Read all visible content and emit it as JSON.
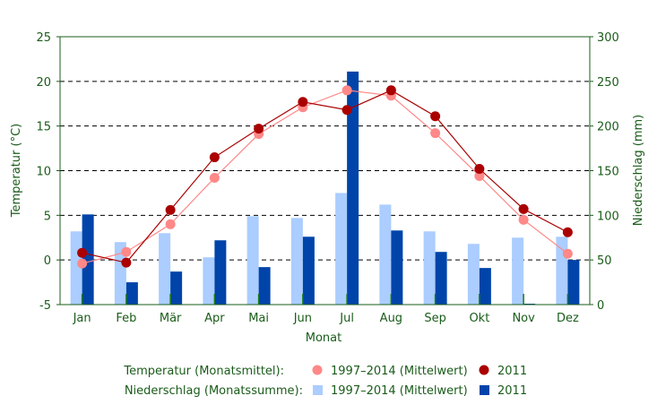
{
  "chart_data": {
    "type": "bar",
    "xlabel": "Monat",
    "ylabel_left": "Temperatur (°C)",
    "ylabel_right": "Niederschlag (mm)",
    "categories": [
      "Jan",
      "Feb",
      "Mär",
      "Apr",
      "Mai",
      "Jun",
      "Jul",
      "Aug",
      "Sep",
      "Okt",
      "Nov",
      "Dez"
    ],
    "ylim_left": [
      -5,
      25
    ],
    "yticks_left": [
      "-5",
      "0",
      "5",
      "10",
      "15",
      "20",
      "25"
    ],
    "ylim_right": [
      0,
      300
    ],
    "yticks_right": [
      "0",
      "50",
      "100",
      "150",
      "200",
      "250",
      "300"
    ],
    "grid": "horizontal dashed",
    "series": [
      {
        "name": "1997–2014 (Mittelwert)",
        "group": "Niederschlag",
        "kind": "bar",
        "axis": "right",
        "color": "#abcdff",
        "values": [
          82,
          70,
          80,
          53,
          99,
          97,
          125,
          112,
          82,
          68,
          75,
          76
        ]
      },
      {
        "name": "2011",
        "group": "Niederschlag",
        "kind": "bar",
        "axis": "right",
        "color": "#0044aa",
        "values": [
          101,
          25,
          37,
          72,
          42,
          76,
          261,
          83,
          59,
          41,
          1,
          50
        ]
      },
      {
        "name": "1997–2014 (Mittelwert)",
        "group": "Temperatur",
        "kind": "line",
        "axis": "left",
        "color": "#ff8888",
        "values": [
          -0.4,
          0.9,
          4.0,
          9.2,
          14.1,
          17.1,
          19.0,
          18.4,
          14.2,
          9.4,
          4.5,
          0.7
        ]
      },
      {
        "name": "2011",
        "group": "Temperatur",
        "kind": "line",
        "axis": "left",
        "color": "#aa0000",
        "values": [
          0.8,
          -0.3,
          5.6,
          11.5,
          14.7,
          17.7,
          16.8,
          19.0,
          16.1,
          10.2,
          5.7,
          3.1
        ]
      }
    ],
    "legend": {
      "placement": "bottom",
      "rows": [
        {
          "label": "Temperatur (Monatsmittel):",
          "items": [
            {
              "text": "1997–2014 (Mittelwert)"
            },
            {
              "text": "2011"
            }
          ]
        },
        {
          "label": "Niederschlag (Monatssumme):",
          "items": [
            {
              "text": "1997–2014 (Mittelwert)"
            },
            {
              "text": "2011"
            }
          ]
        }
      ]
    }
  }
}
